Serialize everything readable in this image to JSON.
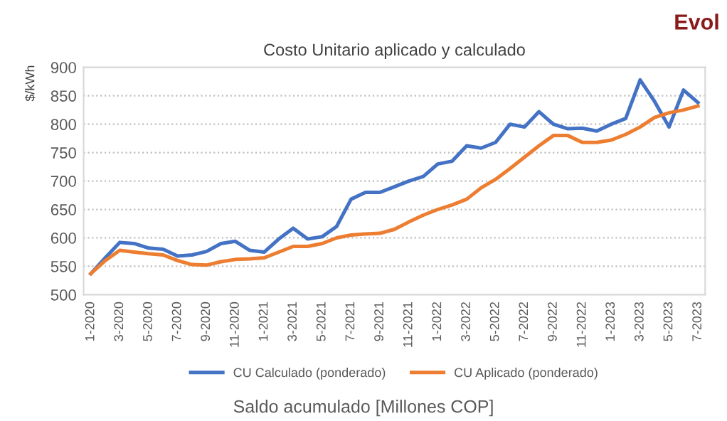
{
  "chart_data": {
    "type": "line",
    "title": "Costo Unitario aplicado y calculado",
    "ylabel": "$/kWh",
    "categories": [
      "1-2020",
      null,
      "3-2020",
      null,
      "5-2020",
      null,
      "7-2020",
      null,
      "9-2020",
      null,
      "11-2020",
      null,
      "1-2021",
      null,
      "3-2021",
      null,
      "5-2021",
      null,
      "7-2021",
      null,
      "9-2021",
      null,
      "11-2021",
      null,
      "1-2022",
      null,
      "3-2022",
      null,
      "5-2022",
      null,
      "7-2022",
      null,
      "9-2022",
      null,
      "11-2022",
      null,
      "1-2023",
      null,
      "3-2023",
      null,
      "5-2023",
      null,
      "7-2023"
    ],
    "series": [
      {
        "name": "CU Calculado (ponderado)",
        "color": "#4472c4",
        "values": [
          537,
          565,
          592,
          590,
          582,
          580,
          568,
          570,
          576,
          590,
          594,
          578,
          575,
          598,
          617,
          598,
          602,
          620,
          668,
          680,
          680,
          690,
          700,
          708,
          730,
          735,
          762,
          758,
          768,
          800,
          795,
          822,
          800,
          792,
          793,
          788,
          800,
          810,
          878,
          840,
          795,
          860,
          838
        ]
      },
      {
        "name": "CU Aplicado (ponderado)",
        "color": "#ed7d31",
        "values": [
          537,
          560,
          578,
          575,
          572,
          570,
          560,
          553,
          552,
          558,
          562,
          563,
          565,
          575,
          585,
          585,
          590,
          600,
          605,
          607,
          608,
          615,
          628,
          640,
          650,
          658,
          668,
          688,
          703,
          722,
          742,
          762,
          780,
          780,
          768,
          768,
          772,
          782,
          795,
          812,
          820,
          825,
          832
        ]
      }
    ],
    "ylim": [
      500,
      900
    ],
    "yticks": [
      500,
      550,
      600,
      650,
      700,
      750,
      800,
      850,
      900
    ],
    "grid": "y",
    "legend": "bottom",
    "annotations": [
      "Saldo acumulado [Millones COP]",
      "Evol"
    ]
  }
}
